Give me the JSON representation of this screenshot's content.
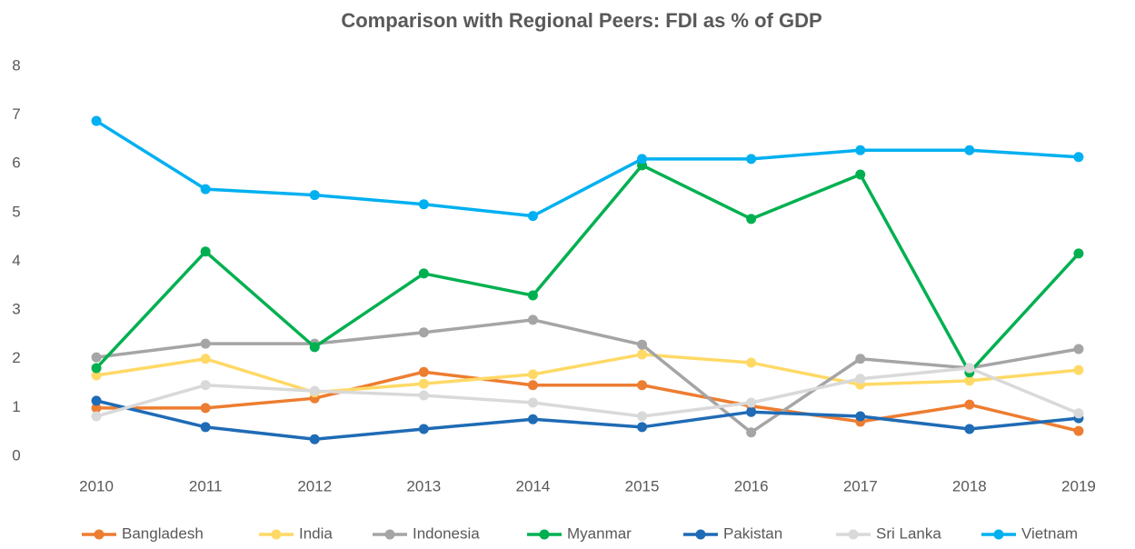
{
  "chart_data": {
    "type": "line",
    "title": "Comparison with Regional Peers: FDI as % of GDP",
    "categories": [
      "2010",
      "2011",
      "2012",
      "2013",
      "2014",
      "2015",
      "2016",
      "2017",
      "2018",
      "2019"
    ],
    "series": [
      {
        "name": "Bangladesh",
        "color": "#ED7D31",
        "values": [
          0.99,
          0.99,
          1.19,
          1.73,
          1.46,
          1.46,
          1.03,
          0.71,
          1.06,
          0.52
        ]
      },
      {
        "name": "India",
        "color": "#FFD966",
        "values": [
          1.66,
          2.0,
          1.31,
          1.49,
          1.68,
          2.09,
          1.92,
          1.47,
          1.55,
          1.77
        ]
      },
      {
        "name": "Indonesia",
        "color": "#A5A5A5",
        "values": [
          2.03,
          2.31,
          2.31,
          2.54,
          2.8,
          2.29,
          0.49,
          2.0,
          1.81,
          2.2
        ]
      },
      {
        "name": "Myanmar",
        "color": "#00B050",
        "values": [
          1.81,
          4.2,
          2.24,
          3.75,
          3.3,
          5.97,
          4.87,
          5.78,
          1.72,
          4.16
        ]
      },
      {
        "name": "Pakistan",
        "color": "#1F6BB5",
        "values": [
          1.14,
          0.6,
          0.35,
          0.56,
          0.76,
          0.6,
          0.91,
          0.82,
          0.56,
          0.78
        ]
      },
      {
        "name": "Sri Lanka",
        "color": "#D9D9D9",
        "values": [
          0.82,
          1.46,
          1.34,
          1.25,
          1.1,
          0.82,
          1.1,
          1.59,
          1.81,
          0.88
        ]
      },
      {
        "name": "Vietnam",
        "color": "#00B0F0",
        "values": [
          6.88,
          5.48,
          5.36,
          5.17,
          4.93,
          6.1,
          6.1,
          6.28,
          6.28,
          6.14
        ]
      }
    ],
    "ylim": [
      0,
      8
    ],
    "yticks": [
      0,
      1,
      2,
      3,
      4,
      5,
      6,
      7,
      8
    ],
    "grid": false,
    "legend": "bottom"
  }
}
